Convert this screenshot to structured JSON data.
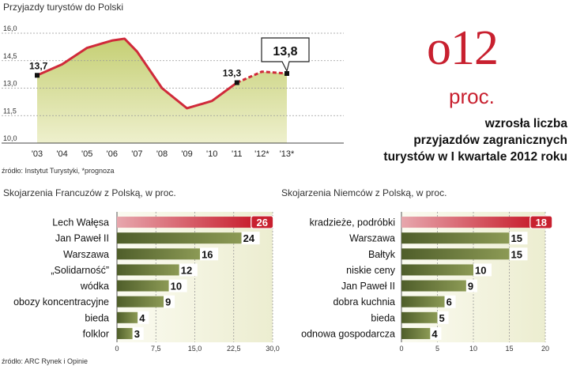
{
  "chart_data": [
    {
      "type": "line",
      "title": "Przyjazdy turystów do Polski",
      "source": "źródło: Instytut Turystyki, *prognoza",
      "categories": [
        "'03",
        "'04",
        "'05",
        "'06",
        "'07",
        "'08",
        "'09",
        "'10",
        "'11",
        "'12*",
        "'13*"
      ],
      "x": [
        2003,
        2004,
        2005,
        2006,
        2006.5,
        2007,
        2008,
        2009,
        2010,
        2011,
        2012,
        2013
      ],
      "values": [
        13.7,
        14.3,
        15.2,
        15.6,
        15.7,
        15.0,
        13.0,
        11.9,
        12.3,
        13.3,
        13.9,
        13.8
      ],
      "forecast_from": 2011,
      "labels": [
        {
          "x": 2003,
          "y": 13.7,
          "text": "13,7"
        },
        {
          "x": 2011,
          "y": 13.3,
          "text": "13,3"
        },
        {
          "x": 2013,
          "y": 13.8,
          "text": "13,8"
        }
      ],
      "ylim": [
        10,
        16
      ],
      "yticks": [
        10,
        11.5,
        13,
        14.5,
        16
      ],
      "ytick_labels": [
        "10,0",
        "11,5",
        "13,0",
        "14,5",
        "16,0"
      ],
      "xlabel": "",
      "ylabel": ""
    },
    {
      "type": "bar",
      "orientation": "horizontal",
      "title": "Skojarzenia Francuzów z Polską, w proc.",
      "categories": [
        "Lech Wałęsa",
        "Jan Paweł II",
        "Warszawa",
        "„Solidarność”",
        "wódka",
        "obozy koncentracyjne",
        "bieda",
        "folklor"
      ],
      "values": [
        26,
        24,
        16,
        12,
        10,
        9,
        4,
        3
      ],
      "highlight": [
        true,
        false,
        false,
        false,
        false,
        false,
        false,
        false
      ],
      "xlim": [
        0,
        30
      ],
      "xticks": [
        0,
        7.5,
        15,
        22.5,
        30
      ],
      "xtick_labels": [
        "0",
        "7,5",
        "15,0",
        "22,5",
        "30,0"
      ],
      "source": "źródło: ARC Rynek i Opinie"
    },
    {
      "type": "bar",
      "orientation": "horizontal",
      "title": "Skojarzenia Niemców z Polską, w proc.",
      "categories": [
        "kradzieże, podróbki",
        "Warszawa",
        "Bałtyk",
        "niskie ceny",
        "Jan Paweł II",
        "dobra kuchnia",
        "bieda",
        "odnowa gospodarcza"
      ],
      "values": [
        18,
        15,
        15,
        10,
        9,
        6,
        5,
        4
      ],
      "highlight": [
        true,
        false,
        false,
        false,
        false,
        false,
        false,
        false
      ],
      "xlim": [
        0,
        20
      ],
      "xticks": [
        0,
        5,
        10,
        15,
        20
      ],
      "xtick_labels": [
        "0",
        "5",
        "10",
        "15",
        "20"
      ]
    }
  ],
  "headline": {
    "number": "o12",
    "unit": "proc.",
    "text_lines": [
      "wzrosła liczba",
      "przyjazdów zagranicznych",
      "turystów w I kwartale 2012 roku"
    ]
  },
  "colors": {
    "red": "#c8202f",
    "line_red": "#d02a3a",
    "area_fill": "#d6dc9a",
    "bar_green_dark": "#4f5e2a",
    "bar_green_light": "#8c9a55",
    "panel_bg": "#f3f3e1",
    "grid": "#999999"
  }
}
